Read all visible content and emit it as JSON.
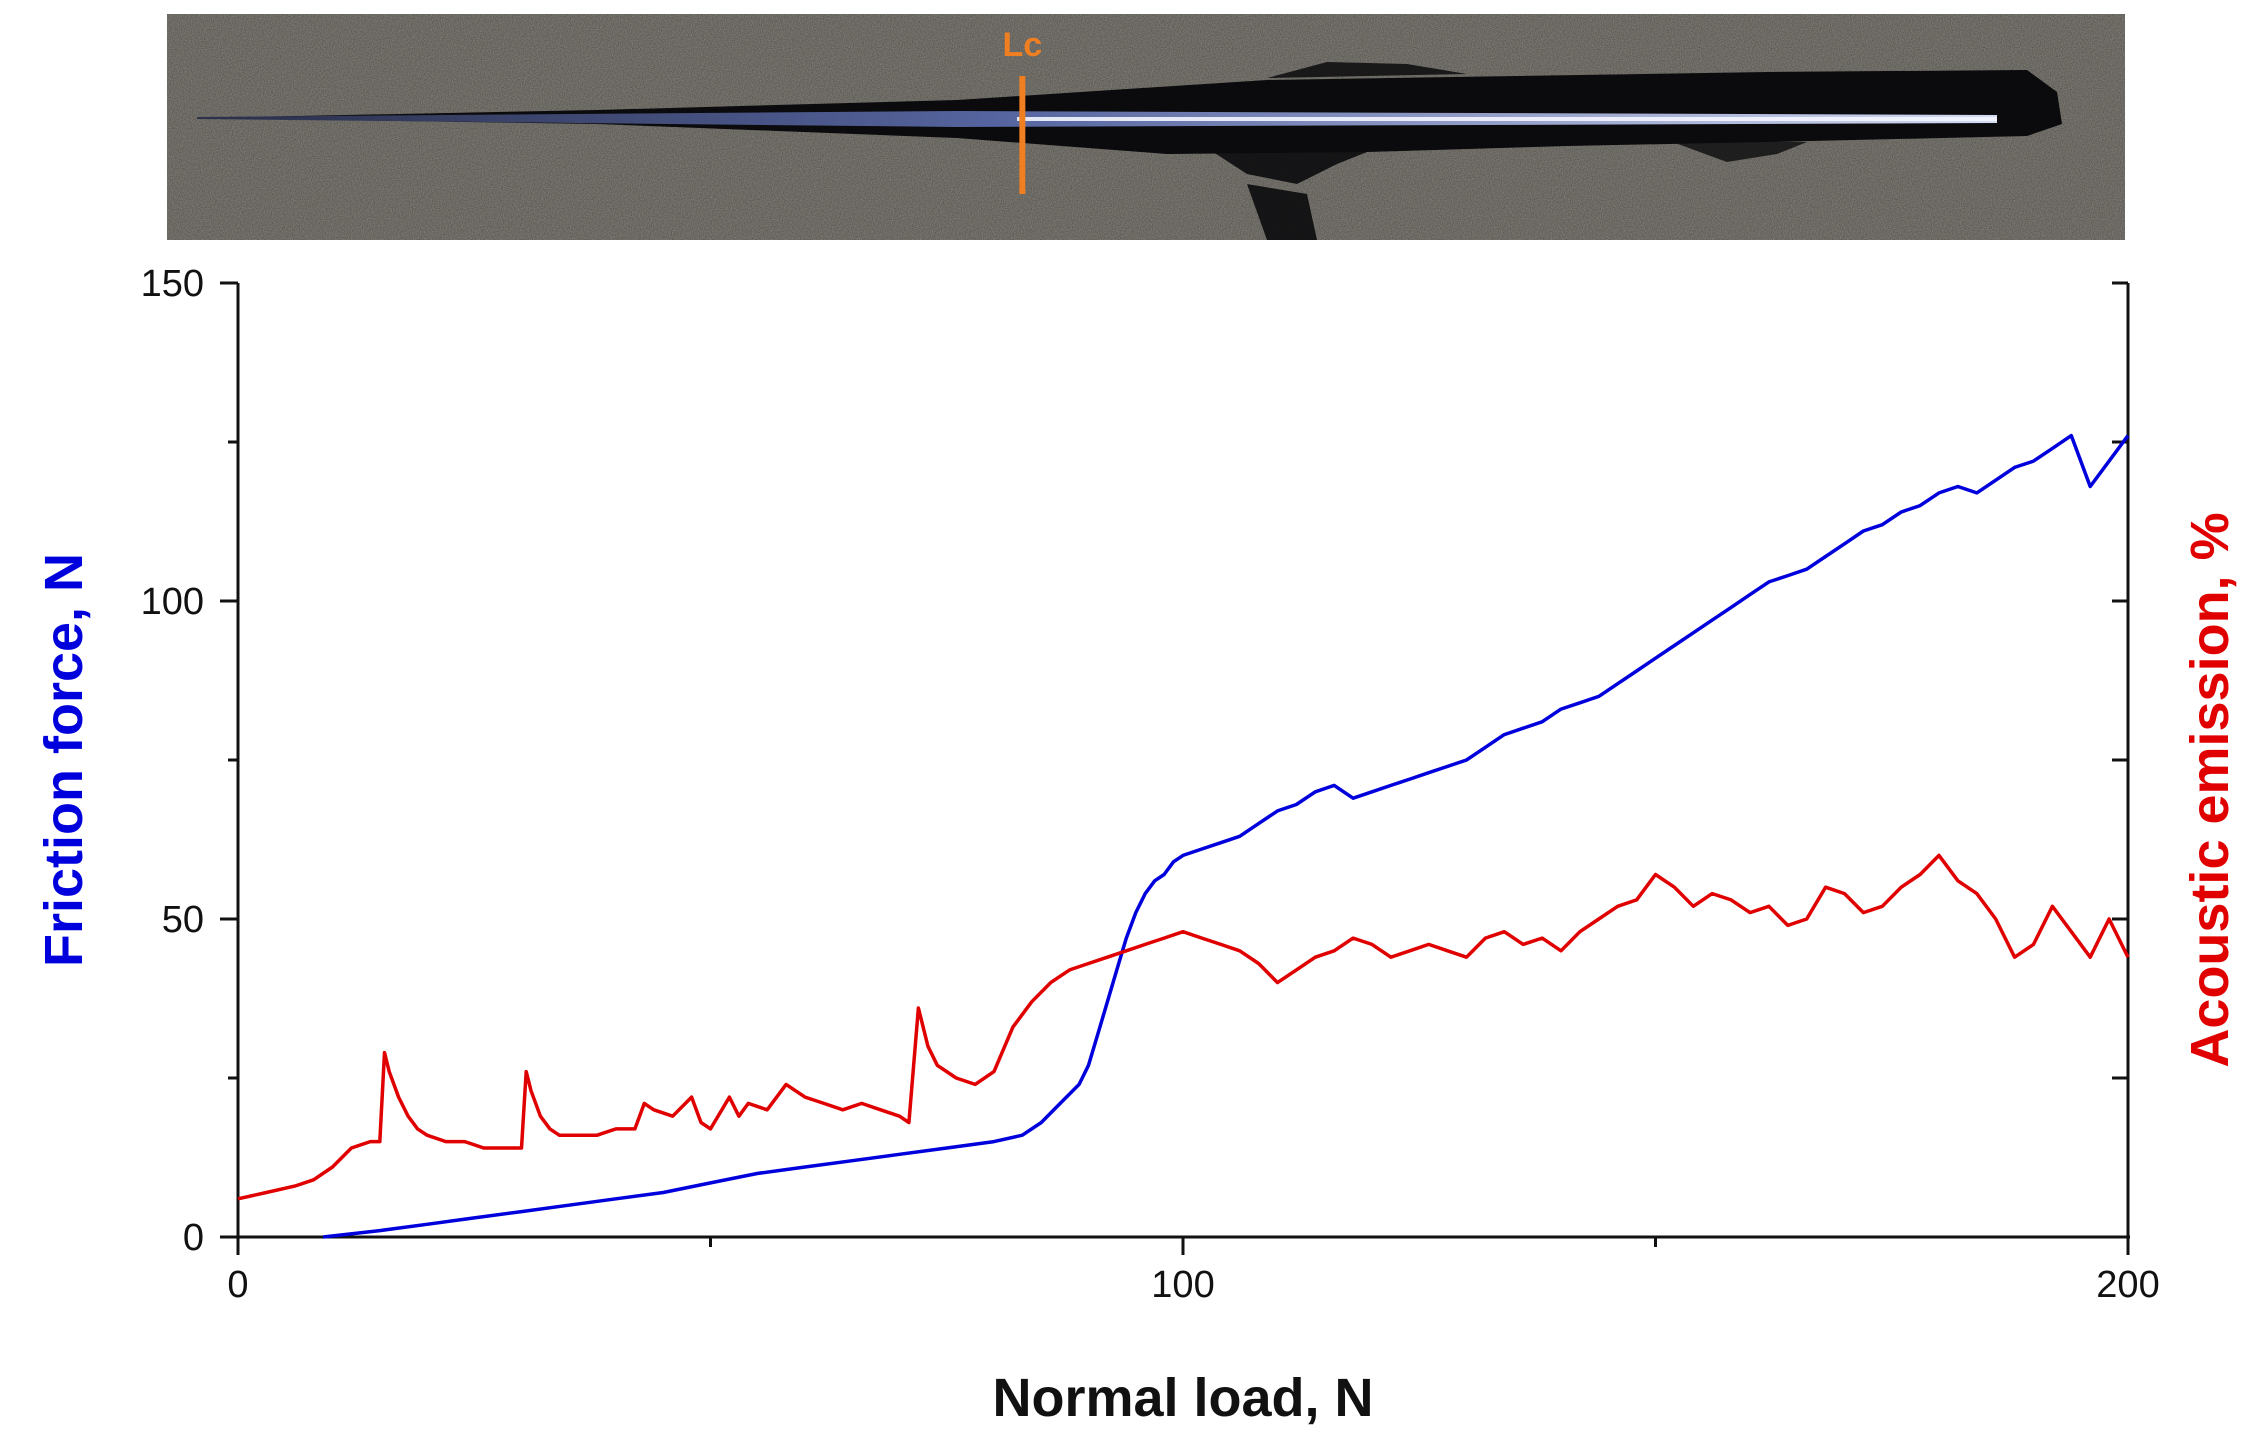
{
  "image_strip": {
    "marker_label": "Lc",
    "marker_color": "#f07f22",
    "marker_load": 83
  },
  "chart_data": {
    "type": "line",
    "title": "",
    "xlabel": "Normal load, N",
    "ylabel_left": "Friction force, N",
    "ylabel_right": "Acoustic emission, %",
    "xlim": [
      0,
      200
    ],
    "ylim": [
      0,
      150
    ],
    "x_ticks": [
      0,
      100,
      200
    ],
    "y_ticks": [
      0,
      50,
      100,
      150
    ],
    "grid": false,
    "colors": {
      "friction": "#0000dd",
      "acoustic": "#e00000",
      "left_label": "#0000dd",
      "right_label": "#e00000"
    },
    "series": [
      {
        "axis": "left",
        "color": "#0000dd",
        "x": [
          9,
          15,
          20,
          25,
          30,
          35,
          40,
          45,
          50,
          55,
          60,
          65,
          70,
          75,
          80,
          83,
          85,
          87,
          89,
          90,
          91,
          92,
          93,
          94,
          95,
          96,
          97,
          98,
          99,
          100,
          102,
          104,
          106,
          108,
          110,
          112,
          114,
          116,
          118,
          120,
          122,
          124,
          126,
          128,
          130,
          132,
          134,
          136,
          138,
          140,
          142,
          144,
          146,
          148,
          150,
          152,
          154,
          156,
          158,
          160,
          162,
          164,
          166,
          168,
          170,
          172,
          174,
          176,
          178,
          180,
          182,
          184,
          186,
          188,
          190,
          192,
          194,
          196,
          198,
          200
        ],
        "y": [
          0,
          1,
          2,
          3,
          4,
          5,
          6,
          7,
          8.5,
          10,
          11,
          12,
          13,
          14,
          15,
          16,
          18,
          21,
          24,
          27,
          32,
          37,
          42,
          47,
          51,
          54,
          56,
          57,
          59,
          60,
          61,
          62,
          63,
          65,
          67,
          68,
          70,
          71,
          69,
          70,
          71,
          72,
          73,
          74,
          75,
          77,
          79,
          80,
          81,
          83,
          84,
          85,
          87,
          89,
          91,
          93,
          95,
          97,
          99,
          101,
          103,
          104,
          105,
          107,
          109,
          111,
          112,
          114,
          115,
          117,
          118,
          117,
          119,
          121,
          122,
          124,
          126,
          118,
          122,
          126
        ]
      },
      {
        "axis": "right",
        "color": "#e00000",
        "x": [
          0,
          3,
          6,
          8,
          10,
          12,
          14,
          15,
          15.5,
          16,
          17,
          18,
          19,
          20,
          22,
          24,
          26,
          28,
          30,
          30.5,
          31,
          32,
          33,
          34,
          36,
          38,
          40,
          42,
          43,
          44,
          46,
          48,
          49,
          50,
          52,
          53,
          54,
          56,
          58,
          60,
          62,
          64,
          66,
          68,
          70,
          71,
          72,
          73,
          74,
          76,
          78,
          80,
          82,
          84,
          86,
          88,
          90,
          92,
          94,
          96,
          98,
          100,
          102,
          104,
          106,
          108,
          110,
          112,
          114,
          116,
          118,
          120,
          122,
          124,
          126,
          128,
          130,
          132,
          134,
          136,
          138,
          140,
          142,
          144,
          146,
          148,
          150,
          152,
          154,
          156,
          158,
          160,
          162,
          164,
          166,
          168,
          170,
          172,
          174,
          176,
          178,
          180,
          182,
          184,
          186,
          188,
          190,
          192,
          194,
          196,
          198,
          200
        ],
        "y": [
          6,
          7,
          8,
          9,
          11,
          14,
          15,
          15,
          29,
          26,
          22,
          19,
          17,
          16,
          15,
          15,
          14,
          14,
          14,
          26,
          23,
          19,
          17,
          16,
          16,
          16,
          17,
          17,
          21,
          20,
          19,
          22,
          18,
          17,
          22,
          19,
          21,
          20,
          24,
          22,
          21,
          20,
          21,
          20,
          19,
          18,
          36,
          30,
          27,
          25,
          24,
          26,
          33,
          37,
          40,
          42,
          43,
          44,
          45,
          46,
          47,
          48,
          47,
          46,
          45,
          43,
          40,
          42,
          44,
          45,
          47,
          46,
          44,
          45,
          46,
          45,
          44,
          47,
          48,
          46,
          47,
          45,
          48,
          50,
          52,
          53,
          57,
          55,
          52,
          54,
          53,
          51,
          52,
          49,
          50,
          55,
          54,
          51,
          52,
          55,
          57,
          60,
          56,
          54,
          50,
          44,
          46,
          52,
          48,
          44,
          50,
          44
        ]
      }
    ]
  }
}
